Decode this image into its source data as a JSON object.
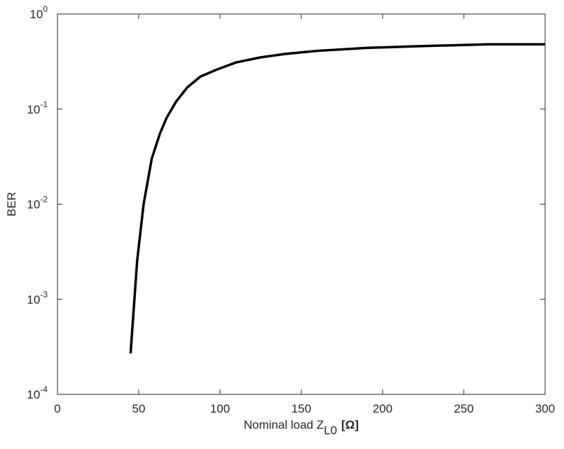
{
  "chart_data": {
    "type": "line",
    "x_label": {
      "text": "Nominal load Z",
      "subscript": "L0",
      "suffix": "[Ω]"
    },
    "y_label": "BER",
    "x": [
      45,
      49,
      53,
      58,
      63,
      67,
      73,
      80,
      88,
      98,
      110,
      125,
      140,
      160,
      190,
      225,
      265,
      300
    ],
    "series": [
      {
        "color": "#000000",
        "values": [
          0.00027,
          0.0025,
          0.01,
          0.03,
          0.055,
          0.08,
          0.12,
          0.17,
          0.22,
          0.26,
          0.31,
          0.35,
          0.38,
          0.41,
          0.44,
          0.46,
          0.48,
          0.48
        ]
      }
    ],
    "xlim": [
      0,
      300
    ],
    "xticks": [
      0,
      50,
      100,
      150,
      200,
      250,
      300
    ],
    "ylim": [
      0.0001,
      1
    ],
    "ylog": true,
    "yticks": [
      {
        "value": 0.0001,
        "label": "10",
        "exponent": "-4"
      },
      {
        "value": 0.001,
        "label": "10",
        "exponent": "-3"
      },
      {
        "value": 0.01,
        "label": "10",
        "exponent": "-2"
      },
      {
        "value": 0.1,
        "label": "10",
        "exponent": "-1"
      },
      {
        "value": 1,
        "label": "10",
        "exponent": "0"
      }
    ],
    "grid": false
  }
}
